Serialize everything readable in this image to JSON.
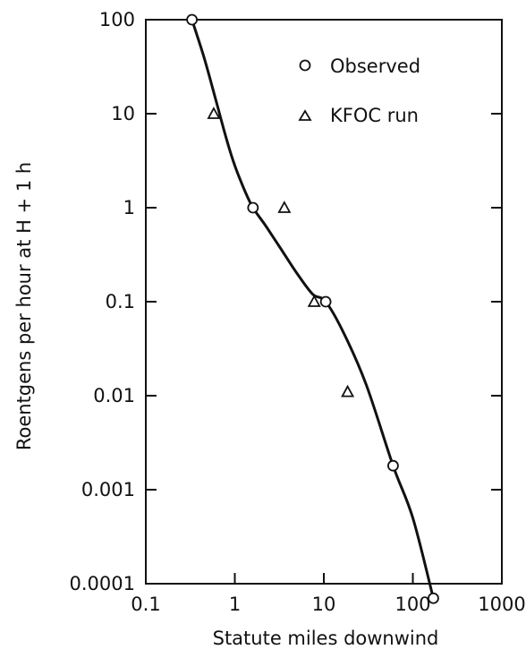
{
  "chart_data": {
    "type": "scatter",
    "title": "",
    "xlabel": "Statute miles downwind",
    "ylabel": "Roentgens per hour at H + 1 h",
    "x_scale": "log",
    "y_scale": "log",
    "xlim": [
      0.1,
      1000
    ],
    "ylim": [
      0.0001,
      100
    ],
    "x_ticks": [
      0.1,
      1,
      10,
      100,
      1000
    ],
    "x_tick_labels": [
      "0.1",
      "1",
      "10",
      "100",
      "1000"
    ],
    "y_ticks": [
      100,
      10,
      1,
      0.1,
      0.01,
      0.001,
      0.0001
    ],
    "y_tick_labels": [
      "100",
      "10",
      "1",
      "0.1",
      "0.01",
      "0.001",
      "0.0001"
    ],
    "grid": false,
    "legend_position": "top-right",
    "series": [
      {
        "name": "Observed",
        "marker": "circle",
        "x": [
          0.33,
          1.6,
          10.5,
          60,
          170
        ],
        "y": [
          100,
          1.0,
          0.1,
          0.0018,
          7e-05
        ]
      },
      {
        "name": "KFOC run",
        "marker": "triangle",
        "x": [
          0.58,
          3.6,
          7.8,
          18.5
        ],
        "y": [
          10,
          1.0,
          0.1,
          0.011
        ]
      }
    ],
    "fitted_curve": {
      "x": [
        0.33,
        0.45,
        0.6,
        0.8,
        1.0,
        1.3,
        1.6,
        2.2,
        3.2,
        5.0,
        7.5,
        10.5,
        17,
        30,
        60,
        100,
        170
      ],
      "y": [
        100,
        40,
        15,
        5.5,
        2.8,
        1.5,
        1.0,
        0.65,
        0.38,
        0.2,
        0.12,
        0.1,
        0.045,
        0.013,
        0.0018,
        0.0005,
        7e-05
      ]
    }
  }
}
